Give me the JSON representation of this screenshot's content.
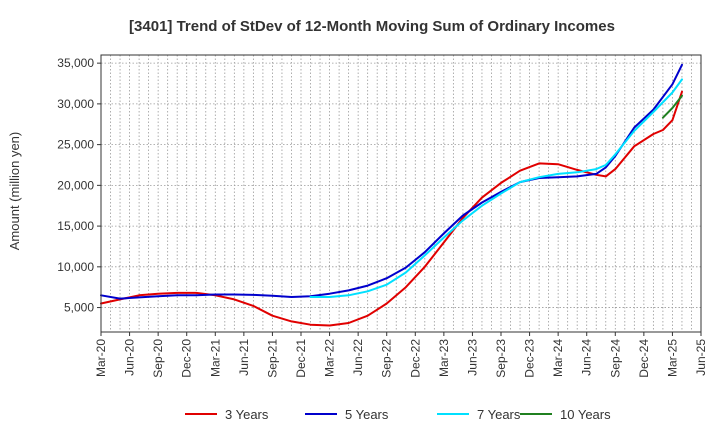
{
  "chart_data": {
    "type": "line",
    "title": "[3401]  Trend of StDev of 12-Month Moving Sum of Ordinary Incomes",
    "xlabel": "",
    "ylabel": "Amount (million yen)",
    "ylim": [
      2000,
      36000
    ],
    "yticks": [
      5000,
      10000,
      15000,
      20000,
      25000,
      30000,
      35000
    ],
    "ytick_labels": [
      "5,000",
      "10,000",
      "15,000",
      "20,000",
      "25,000",
      "30,000",
      "35,000"
    ],
    "x_months_range": [
      0,
      63
    ],
    "xticks": [
      0,
      3,
      6,
      9,
      12,
      15,
      18,
      21,
      24,
      27,
      30,
      33,
      36,
      39,
      42,
      45,
      48,
      51,
      54,
      57,
      60,
      63
    ],
    "xtick_labels": [
      "Mar-20",
      "Jun-20",
      "Sep-20",
      "Dec-20",
      "Mar-21",
      "Jun-21",
      "Sep-21",
      "Dec-21",
      "Mar-22",
      "Jun-22",
      "Sep-22",
      "Dec-22",
      "Mar-23",
      "Jun-23",
      "Sep-23",
      "Dec-23",
      "Mar-24",
      "Jun-24",
      "Sep-24",
      "Dec-24",
      "Mar-25",
      "Jun-25"
    ],
    "grid": true,
    "legend_position": "bottom",
    "series": [
      {
        "name": "3 Years",
        "color": "#e00000",
        "x": [
          0,
          2,
          4,
          6,
          8,
          10,
          12,
          14,
          16,
          18,
          20,
          22,
          24,
          26,
          28,
          30,
          32,
          34,
          36,
          38,
          40,
          42,
          44,
          46,
          48,
          50,
          52,
          53,
          54,
          56,
          58,
          59,
          60,
          61
        ],
        "y": [
          5500,
          6000,
          6500,
          6700,
          6800,
          6800,
          6500,
          6000,
          5200,
          4000,
          3300,
          2900,
          2800,
          3100,
          4000,
          5500,
          7500,
          10000,
          13000,
          16000,
          18500,
          20300,
          21800,
          22700,
          22600,
          21900,
          21300,
          21100,
          22000,
          24800,
          26300,
          26800,
          28000,
          31500
        ]
      },
      {
        "name": "5 Years",
        "color": "#0000cc",
        "x": [
          0,
          2,
          4,
          6,
          8,
          10,
          12,
          14,
          16,
          18,
          20,
          22,
          24,
          26,
          28,
          30,
          32,
          34,
          36,
          38,
          40,
          42,
          44,
          46,
          48,
          50,
          52,
          53,
          54,
          56,
          58,
          60,
          61
        ],
        "y": [
          6500,
          6100,
          6250,
          6400,
          6500,
          6500,
          6600,
          6600,
          6550,
          6450,
          6300,
          6400,
          6700,
          7100,
          7700,
          8600,
          9900,
          11800,
          14100,
          16300,
          17900,
          19200,
          20400,
          20900,
          21000,
          21100,
          21400,
          22200,
          23600,
          27100,
          29300,
          32400,
          34800
        ]
      },
      {
        "name": "7 Years",
        "color": "#00e0ff",
        "x": [
          22,
          24,
          26,
          28,
          30,
          32,
          34,
          36,
          38,
          40,
          42,
          44,
          46,
          48,
          50,
          52,
          53,
          54,
          56,
          58,
          60,
          61
        ],
        "y": [
          6300,
          6300,
          6500,
          7000,
          7800,
          9300,
          11400,
          13600,
          15700,
          17500,
          19000,
          20400,
          21000,
          21400,
          21600,
          22000,
          22500,
          23800,
          26700,
          29000,
          31400,
          33000
        ]
      },
      {
        "name": "10 Years",
        "color": "#208020",
        "x": [
          59,
          60,
          61
        ],
        "y": [
          28300,
          29500,
          31000
        ]
      }
    ]
  }
}
